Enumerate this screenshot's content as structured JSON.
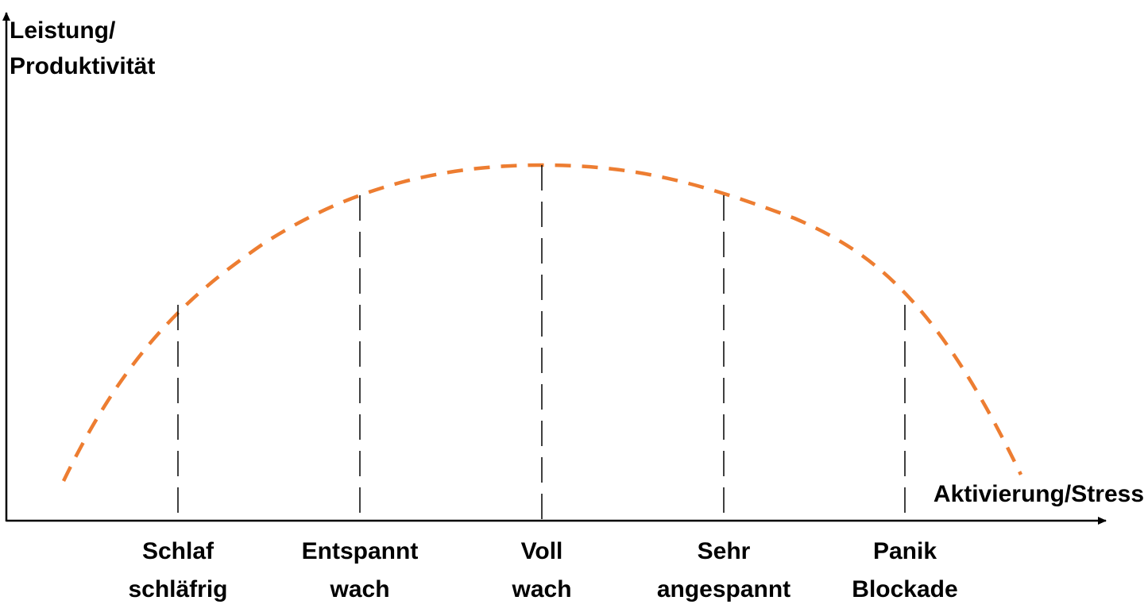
{
  "diagram": {
    "y_axis_title": [
      "Leistung/",
      "Produktivität"
    ],
    "x_axis_title": "Aktivierung/Stress",
    "curve_color": "#ED7D31",
    "axis_color": "#000000",
    "stages": [
      {
        "line1": "Schlaf",
        "line2": "schläfrig",
        "level": 0.655
      },
      {
        "line1": "Entspannt",
        "line2": "wach",
        "level": 0.915
      },
      {
        "line1": "Voll",
        "line2": "wach",
        "level": 1.0
      },
      {
        "line1": "Sehr",
        "line2": "angespannt",
        "level": 0.91
      },
      {
        "line1": "Panik",
        "line2": "Blockade",
        "level": 0.62
      }
    ]
  }
}
